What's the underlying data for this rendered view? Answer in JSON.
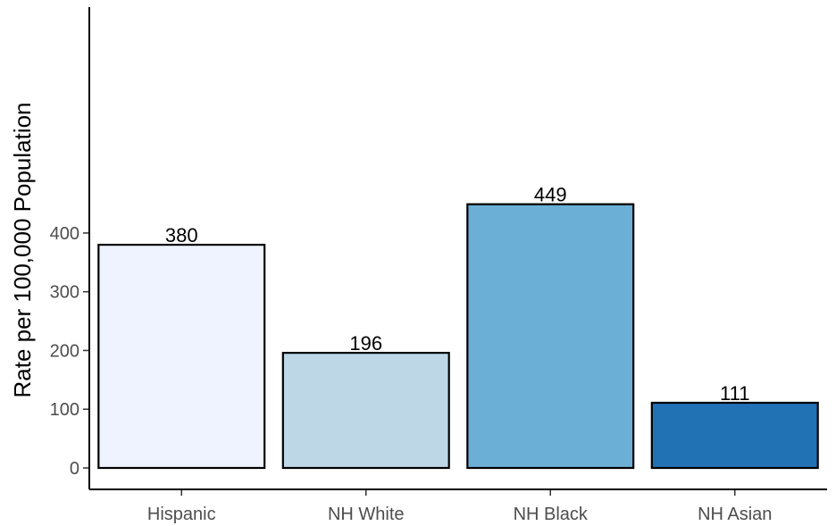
{
  "chart_data": {
    "type": "bar",
    "categories": [
      "Hispanic",
      "NH White",
      "NH Black",
      "NH Asian"
    ],
    "values": [
      380,
      196,
      449,
      111
    ],
    "data_labels": [
      "380",
      "196",
      "449",
      "111"
    ],
    "title": "",
    "xlabel": "",
    "ylabel": "Rate per 100,000 Population",
    "ylim": [
      0,
      470
    ],
    "yticks": [
      0,
      100,
      200,
      300,
      400
    ],
    "ytick_labels": [
      "0",
      "100",
      "200",
      "300",
      "400"
    ],
    "colors": [
      "#eff3ff",
      "#bdd7e7",
      "#6baed6",
      "#2171b5"
    ],
    "bar_edge_color": "#000000",
    "grid": false,
    "legend": "none"
  }
}
